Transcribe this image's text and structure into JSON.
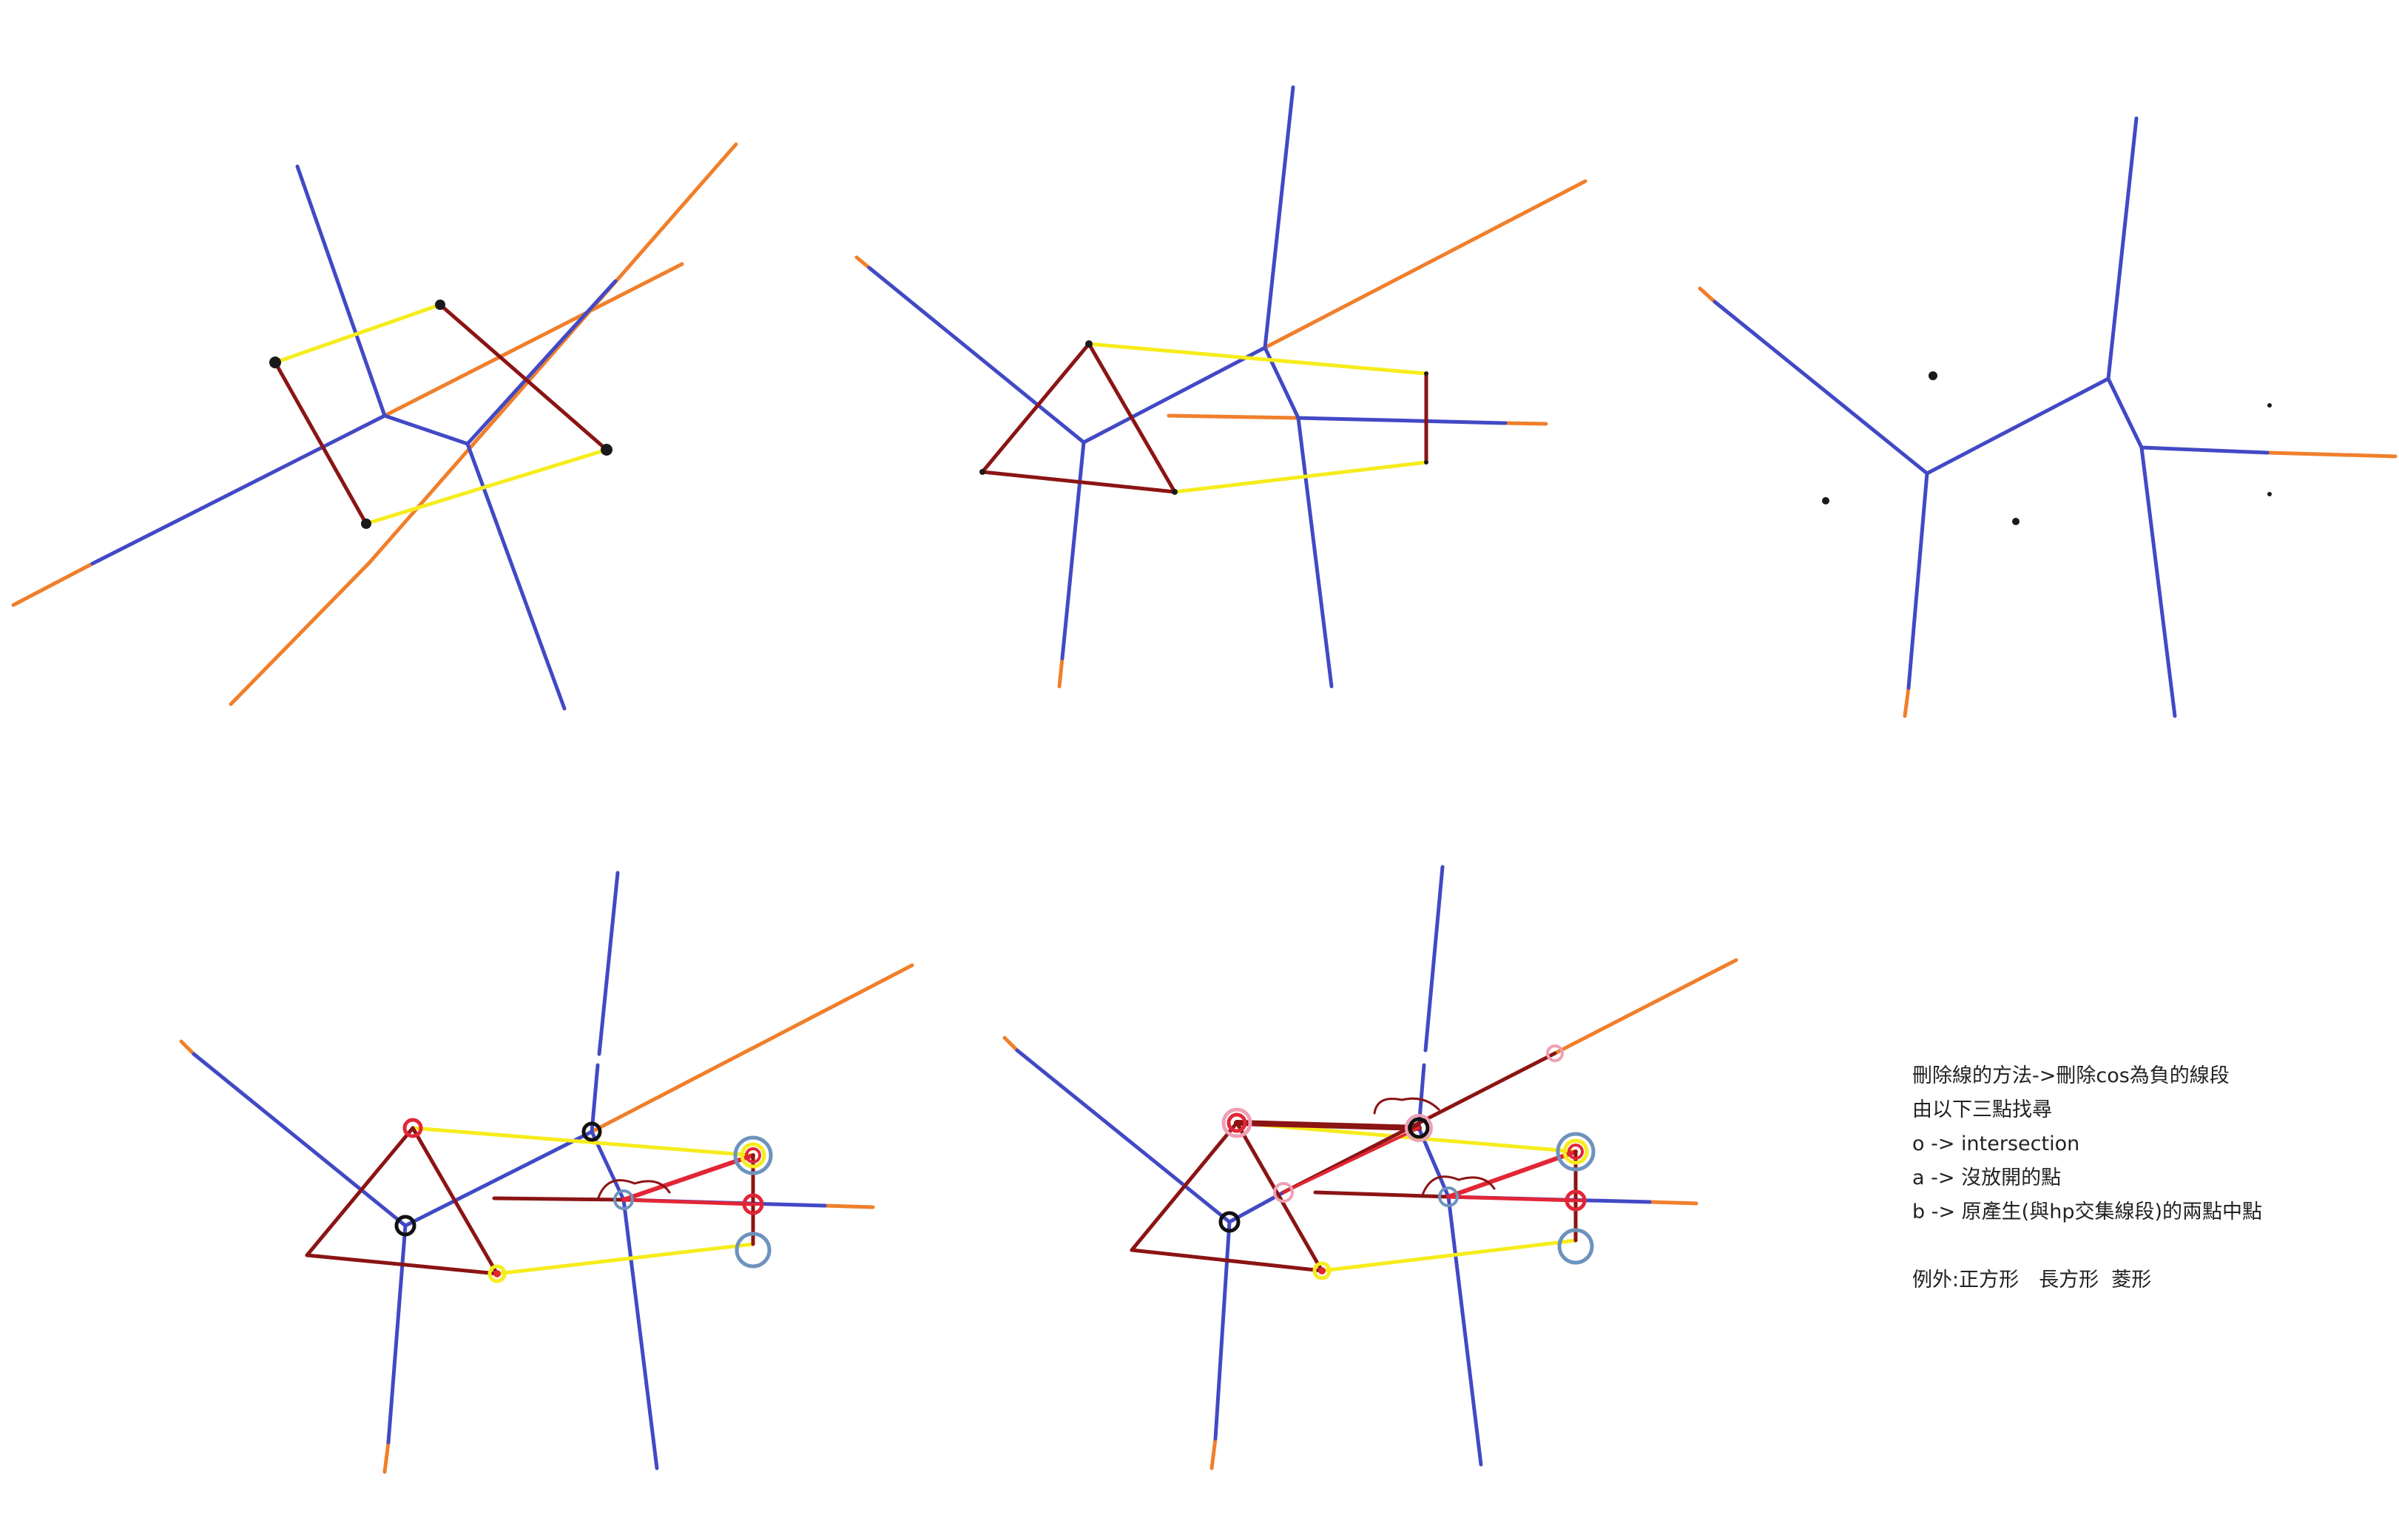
{
  "colors": {
    "background": "#ffffff",
    "voronoi_edge": "#4249c5",
    "ray_extension": "#f07f2b",
    "tangent_line": "#f6ec1c",
    "convex_hull": "#8b1414",
    "highlight_red": "#e22636",
    "circle_black": "#111111",
    "circle_blue": "#6d93bd",
    "circle_pink": "#ef9fb4",
    "point": "#1a1a1a"
  },
  "notes": {
    "line1": "刪除線的方法->刪除cos為負的線段",
    "line2": "由以下三點找尋",
    "line3": "o -> intersection",
    "line4": "a -> 沒放開的點",
    "line5": "b -> 原產生(與hp交集線段)的兩點中點",
    "exception": "例外:正方形　長方形  菱形"
  }
}
